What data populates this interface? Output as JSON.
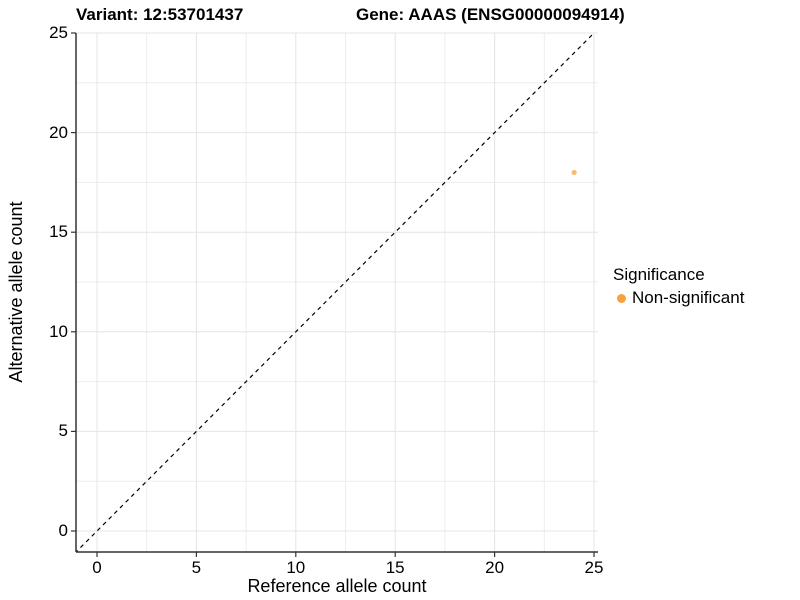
{
  "chart_data": {
    "type": "scatter",
    "title_left": "Variant: 12:53701437",
    "title_right": "Gene: AAAS (ENSG00000094914)",
    "xlabel": "Reference allele count",
    "ylabel": "Alternative allele count",
    "xlim": [
      -1.1,
      25
    ],
    "ylim": [
      -1.1,
      25
    ],
    "x_ticks": [
      0,
      5,
      10,
      15,
      20,
      25
    ],
    "y_ticks": [
      0,
      5,
      10,
      15,
      20,
      25
    ],
    "grid": {
      "minor_step": 2.5,
      "major_step": 5,
      "major_color": "#e4e4e4",
      "minor_color": "#ededed"
    },
    "series": [
      {
        "name": "Non-significant",
        "color": "#F9A03F",
        "point_opacity": 0.75,
        "points": [
          {
            "x": 24,
            "y": 18
          }
        ]
      }
    ],
    "reference_line": {
      "kind": "identity y=x",
      "style": "dashed",
      "color": "#000000"
    },
    "legend": {
      "title": "Significance",
      "position": "right",
      "items": [
        {
          "label": "Non-significant",
          "color": "#F9A03F"
        }
      ]
    },
    "style": {
      "axis_color": "#333333",
      "background": "#ffffff",
      "text_color": "#000000"
    }
  }
}
